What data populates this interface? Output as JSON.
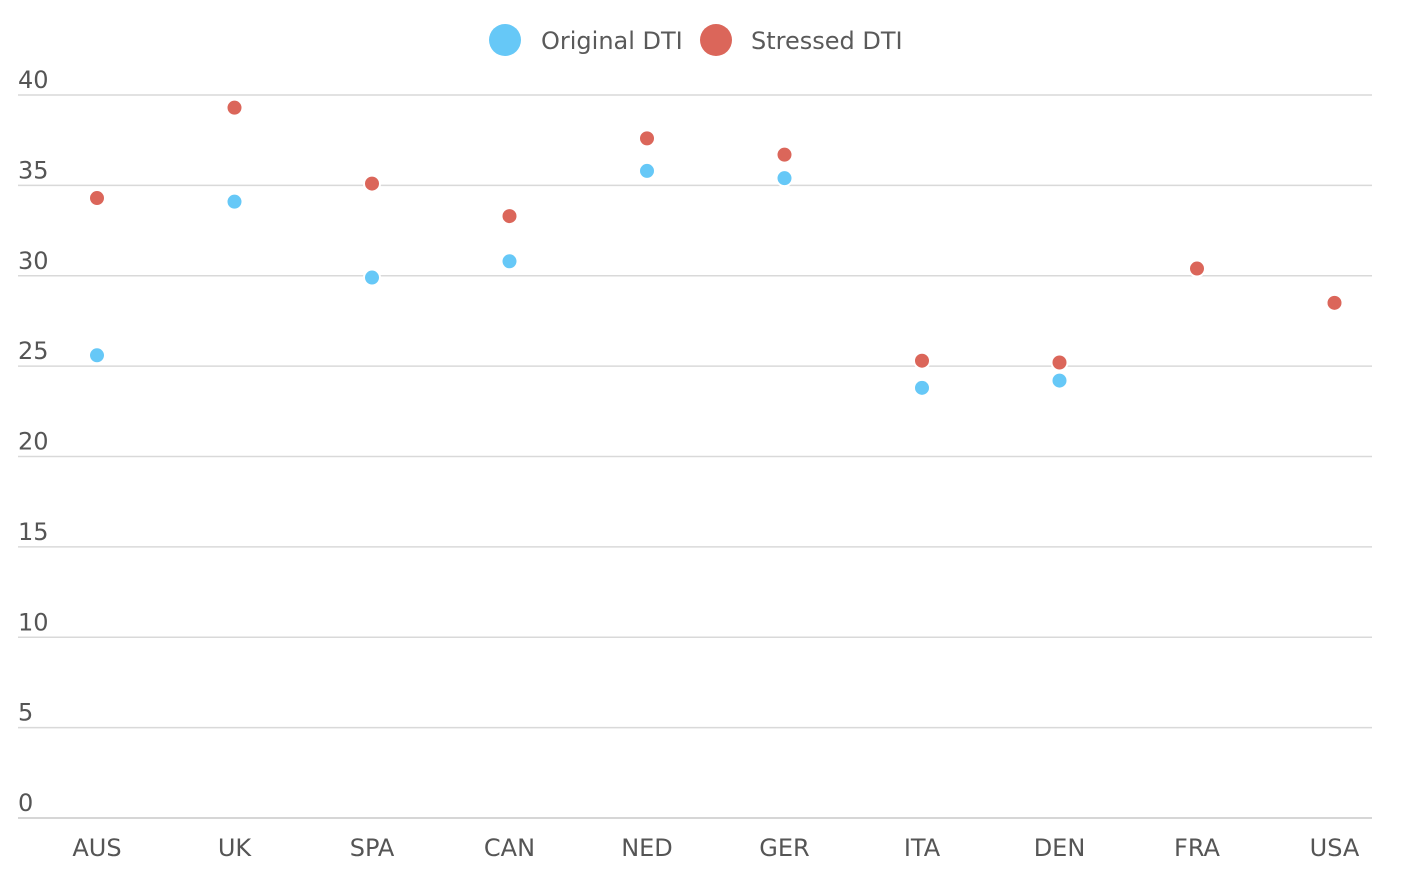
{
  "chart_data": {
    "type": "scatter",
    "categories": [
      "AUS",
      "UK",
      "SPA",
      "CAN",
      "NED",
      "GER",
      "ITA",
      "DEN",
      "FRA",
      "USA"
    ],
    "series": [
      {
        "name": "Original DTI",
        "color": "#66c8f7",
        "values": [
          25.6,
          34.1,
          29.9,
          30.8,
          35.8,
          35.4,
          23.8,
          24.2,
          null,
          null
        ]
      },
      {
        "name": "Stressed DTI",
        "color": "#db665a",
        "values": [
          34.3,
          39.3,
          35.1,
          33.3,
          37.6,
          36.7,
          25.3,
          25.2,
          30.4,
          28.5
        ]
      }
    ],
    "ylim": [
      0,
      40
    ],
    "yticks": [
      0,
      5,
      10,
      15,
      20,
      25,
      30,
      35,
      40
    ],
    "title": "",
    "xlabel": "",
    "ylabel": "",
    "legend": "top-center",
    "grid": true
  }
}
